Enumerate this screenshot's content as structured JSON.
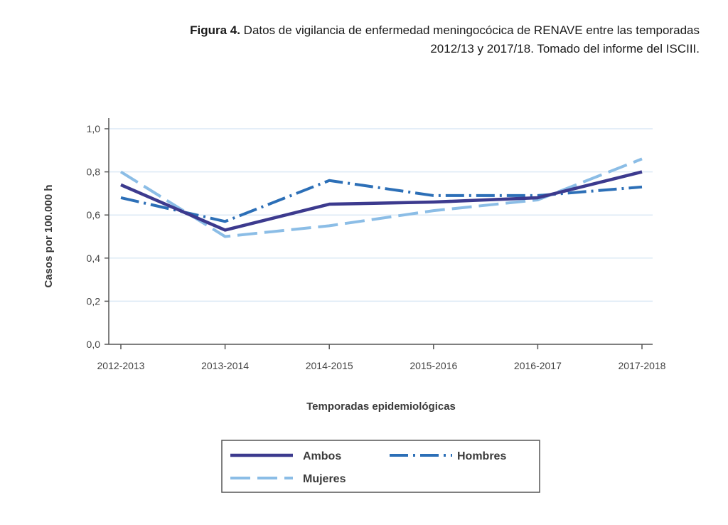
{
  "caption": {
    "label": "Figura 4.",
    "text": " Datos de vigilancia de enfermedad meningocócica de RENAVE entre las temporadas 2012/13 y 2017/18. Tomado del informe del ISCIII."
  },
  "chart_data": {
    "type": "line",
    "title": "",
    "xlabel": "Temporadas epidemiológicas",
    "ylabel": "Casos por 100.000 h",
    "ylim": [
      0,
      1.0
    ],
    "yticks": [
      "0,0",
      "0,2",
      "0,4",
      "0,6",
      "0,8",
      "1,0"
    ],
    "categories": [
      "2012-2013",
      "2013-2014",
      "2014-2015",
      "2015-2016",
      "2016-2017",
      "2017-2018"
    ],
    "grid": true,
    "legend_position": "bottom-center",
    "series": [
      {
        "name": "Ambos",
        "values": [
          0.74,
          0.53,
          0.65,
          0.66,
          0.68,
          0.8
        ],
        "color": "#3c3a8e",
        "style": "solid"
      },
      {
        "name": "Hombres",
        "values": [
          0.68,
          0.57,
          0.76,
          0.69,
          0.69,
          0.73
        ],
        "color": "#2c6fb7",
        "style": "dashdot"
      },
      {
        "name": "Mujeres",
        "values": [
          0.8,
          0.5,
          0.55,
          0.62,
          0.67,
          0.86
        ],
        "color": "#8bbde6",
        "style": "dashed"
      }
    ]
  }
}
